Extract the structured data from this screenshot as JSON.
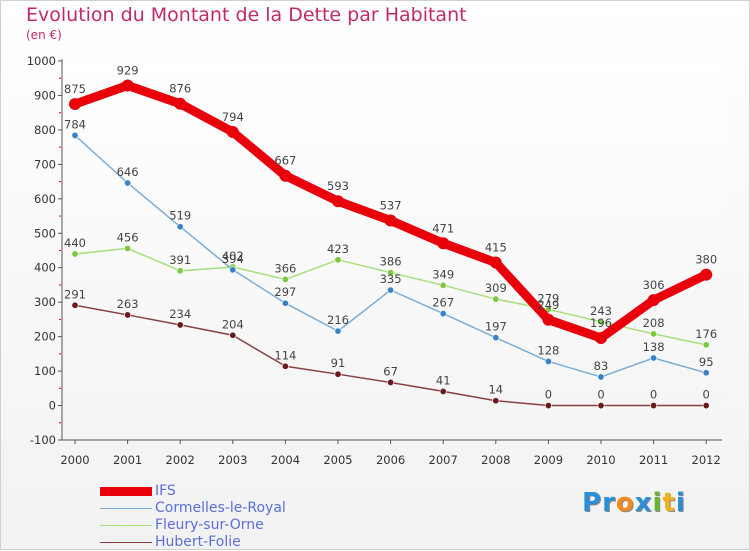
{
  "title": "Evolution du Montant de la Dette par Habitant",
  "subtitle": "(en €)",
  "logo": {
    "text": "Proxiti",
    "letters": [
      {
        "ch": "P",
        "color": "#2a8fd6"
      },
      {
        "ch": "r",
        "color": "#2a8fd6"
      },
      {
        "ch": "o",
        "color": "#f28a1c"
      },
      {
        "ch": "x",
        "color": "#2a8fd6"
      },
      {
        "ch": "i",
        "color": "#6ab530"
      },
      {
        "ch": "t",
        "color": "#f2b21c"
      },
      {
        "ch": "i",
        "color": "#2a8fd6"
      }
    ]
  },
  "chart_data": {
    "type": "line",
    "x": [
      "2000",
      "2001",
      "2002",
      "2003",
      "2004",
      "2005",
      "2006",
      "2007",
      "2008",
      "2009",
      "2010",
      "2011",
      "2012"
    ],
    "ylim": [
      -100,
      1000
    ],
    "yticks": [
      -100,
      0,
      100,
      200,
      300,
      400,
      500,
      600,
      700,
      800,
      900,
      1000
    ],
    "grid": false,
    "legend": "bottom-left",
    "series": [
      {
        "name": "IFS",
        "color": "#e8000b",
        "width": 9,
        "marker": 6,
        "marker_color": "#e8000b",
        "values": [
          875,
          929,
          876,
          794,
          667,
          593,
          537,
          471,
          415,
          249,
          196,
          306,
          380
        ]
      },
      {
        "name": "Cormelles-le-Royal",
        "color": "#7aaed6",
        "width": 1.5,
        "marker": 3.2,
        "marker_color": "#3a82c4",
        "values": [
          784,
          646,
          519,
          394,
          297,
          216,
          335,
          267,
          197,
          128,
          83,
          138,
          95
        ]
      },
      {
        "name": "Fleury-sur-Orne",
        "color": "#a6e07a",
        "width": 1.5,
        "marker": 3.2,
        "marker_color": "#7cc840",
        "values": [
          440,
          456,
          391,
          402,
          366,
          423,
          386,
          349,
          309,
          279,
          243,
          208,
          176
        ]
      },
      {
        "name": "Hubert-Folie",
        "color": "#8a4040",
        "width": 1.5,
        "marker": 3.2,
        "marker_color": "#6a1a1a",
        "values": [
          291,
          263,
          234,
          204,
          114,
          91,
          67,
          41,
          14,
          0,
          0,
          0,
          0
        ]
      }
    ]
  }
}
